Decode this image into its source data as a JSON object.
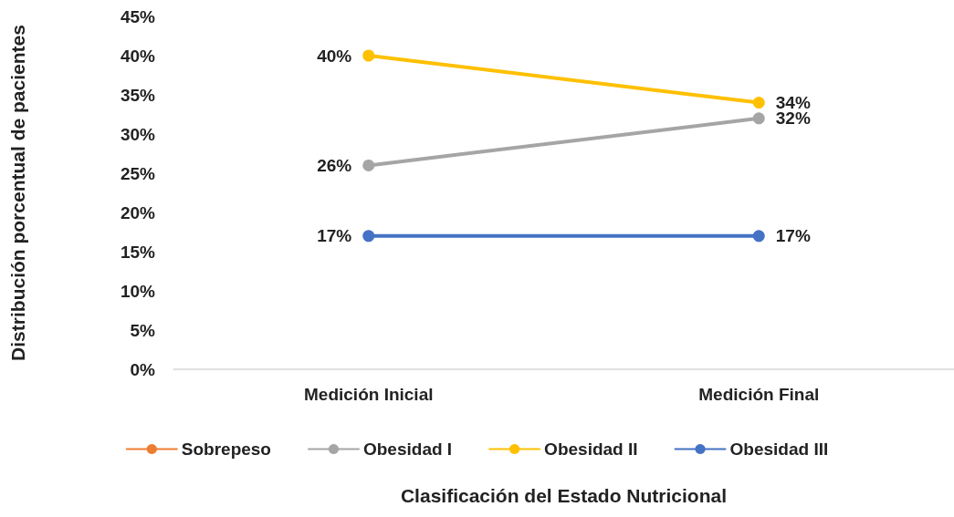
{
  "chart_data": {
    "type": "line",
    "xlabel": "Clasificación del Estado Nutricional",
    "ylabel": "Distribución porcentual de pacientes",
    "categories": [
      "Medición Inicial",
      "Medición Final"
    ],
    "series": [
      {
        "name": "Sobrepeso",
        "color": "#ed7d31",
        "values": [
          null,
          null
        ]
      },
      {
        "name": "Obesidad I",
        "color": "#a5a5a5",
        "values": [
          26,
          32
        ],
        "value_labels": [
          "26%",
          "32%"
        ]
      },
      {
        "name": "Obesidad II",
        "color": "#ffc000",
        "values": [
          40,
          34
        ],
        "value_labels": [
          "40%",
          "34%"
        ]
      },
      {
        "name": "Obesidad III",
        "color": "#4472c4",
        "values": [
          17,
          17
        ],
        "value_labels": [
          "17%",
          "17%"
        ]
      }
    ],
    "ylim": [
      0,
      45
    ],
    "yticks": [
      {
        "value": 0,
        "label": "0%"
      },
      {
        "value": 5,
        "label": "5%"
      },
      {
        "value": 10,
        "label": "10%"
      },
      {
        "value": 15,
        "label": "15%"
      },
      {
        "value": 20,
        "label": "20%"
      },
      {
        "value": 25,
        "label": "25%"
      },
      {
        "value": 30,
        "label": "30%"
      },
      {
        "value": 35,
        "label": "35%"
      },
      {
        "value": 40,
        "label": "40%"
      },
      {
        "value": 45,
        "label": "45%"
      }
    ],
    "grid": false,
    "legend": "bottom",
    "marker": "circle",
    "line_style": "solid"
  }
}
